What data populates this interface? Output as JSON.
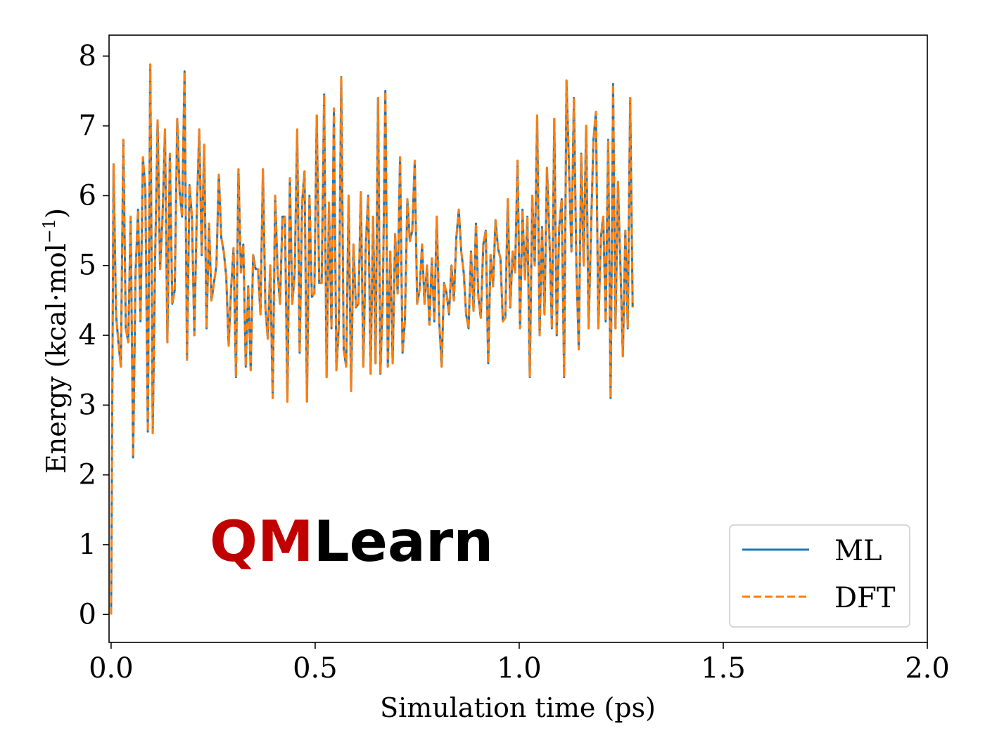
{
  "chart_data": {
    "type": "line",
    "title": "",
    "xlabel": "Simulation time (ps)",
    "ylabel_main": "Energy (kcal·mol",
    "ylabel_sup": "−1",
    "ylabel_close": ")",
    "xlim": [
      -0.005,
      2.0
    ],
    "ylim": [
      -0.4,
      8.3
    ],
    "xticks": [
      0.0,
      0.5,
      1.0,
      1.5,
      2.0
    ],
    "xtick_labels": [
      "0.0",
      "0.5",
      "1.0",
      "1.5",
      "2.0"
    ],
    "yticks": [
      0,
      1,
      2,
      3,
      4,
      5,
      6,
      7,
      8
    ],
    "ytick_labels": [
      "0",
      "1",
      "2",
      "3",
      "4",
      "5",
      "6",
      "7",
      "8"
    ],
    "grid": false,
    "legend": {
      "placement": "bottom-right",
      "entries": [
        "ML",
        "DFT"
      ]
    },
    "colors": {
      "ML": "#1f77b4",
      "DFT": "#ff7f0e"
    },
    "logo": {
      "part1": "QM",
      "part2": "Learn",
      "color1": "#c00000",
      "color2": "#000000"
    },
    "x_step": 0.006,
    "series": [
      {
        "name": "ML",
        "style": "solid",
        "values": [
          0.0,
          6.45,
          4.3,
          3.9,
          3.55,
          6.8,
          4.1,
          3.9,
          5.7,
          2.25,
          4.9,
          5.8,
          4.2,
          6.55,
          6.1,
          2.62,
          7.88,
          2.6,
          5.1,
          7.08,
          4.95,
          5.7,
          6.95,
          3.9,
          6.6,
          4.45,
          4.65,
          7.1,
          6.05,
          5.7,
          7.78,
          3.65,
          6.15,
          5.7,
          4.0,
          5.75,
          6.95,
          5.15,
          6.73,
          4.1,
          5.6,
          4.5,
          4.75,
          5.0,
          6.3,
          5.4,
          5.2,
          4.85,
          3.85,
          4.65,
          5.25,
          3.4,
          6.38,
          4.9,
          5.3,
          3.55,
          4.7,
          3.5,
          5.15,
          4.95,
          4.95,
          4.3,
          6.38,
          4.4,
          3.95,
          5.0,
          3.1,
          6.0,
          4.9,
          4.45,
          5.7,
          5.7,
          3.05,
          6.25,
          4.45,
          4.9,
          6.95,
          3.75,
          5.9,
          6.35,
          3.05,
          6.0,
          4.55,
          4.6,
          7.15,
          4.75,
          4.75,
          7.45,
          3.4,
          5.9,
          4.1,
          7.25,
          3.5,
          4.15,
          7.7,
          3.8,
          3.55,
          6.0,
          3.2,
          5.3,
          4.4,
          4.45,
          6.05,
          3.55,
          5.3,
          6.0,
          3.45,
          5.7,
          3.6,
          7.4,
          3.45,
          4.6,
          7.5,
          3.55,
          5.2,
          3.6,
          5.45,
          4.6,
          6.55,
          3.75,
          4.2,
          5.95,
          5.35,
          5.5,
          6.5,
          4.45,
          4.65,
          5.3,
          4.45,
          5.0,
          4.15,
          5.1,
          4.2,
          5.7,
          4.2,
          3.55,
          4.75,
          4.6,
          4.3,
          5.0,
          4.5,
          5.4,
          5.8,
          5.2,
          4.9,
          4.3,
          4.1,
          5.2,
          4.35,
          5.6,
          4.55,
          4.25,
          5.3,
          5.5,
          3.6,
          5.15,
          4.7,
          5.65,
          5.25,
          5.1,
          4.2,
          4.25,
          5.95,
          4.4,
          5.2,
          4.9,
          6.5,
          4.1,
          5.8,
          4.8,
          5.7,
          3.4,
          6.0,
          5.0,
          7.15,
          4.0,
          5.55,
          4.3,
          6.4,
          5.4,
          4.1,
          7.1,
          4.0,
          5.55,
          5.95,
          3.4,
          7.65,
          6.4,
          5.2,
          7.4,
          5.0,
          3.8,
          6.6,
          5.0,
          7.0,
          4.1,
          5.5,
          6.8,
          7.2,
          4.1,
          5.4,
          5.7,
          4.2,
          6.8,
          3.1,
          7.6,
          4.1,
          6.2,
          5.0,
          3.7,
          5.5,
          4.1,
          7.4,
          4.4
        ]
      },
      {
        "name": "DFT",
        "style": "dashed",
        "values": [
          0.0,
          6.45,
          4.3,
          3.9,
          3.55,
          6.8,
          4.1,
          3.9,
          5.7,
          2.25,
          4.9,
          5.8,
          4.2,
          6.55,
          6.1,
          2.62,
          7.88,
          2.6,
          5.1,
          7.08,
          4.95,
          5.7,
          6.95,
          3.9,
          6.6,
          4.45,
          4.65,
          7.1,
          6.05,
          5.7,
          7.78,
          3.65,
          6.15,
          5.7,
          4.0,
          5.75,
          6.95,
          5.15,
          6.73,
          4.1,
          5.6,
          4.5,
          4.75,
          5.0,
          6.3,
          5.4,
          5.2,
          4.85,
          3.85,
          4.65,
          5.25,
          3.4,
          6.38,
          4.9,
          5.3,
          3.55,
          4.7,
          3.5,
          5.15,
          4.95,
          4.95,
          4.3,
          6.38,
          4.4,
          3.95,
          5.0,
          3.1,
          6.0,
          4.9,
          4.45,
          5.7,
          5.7,
          3.05,
          6.25,
          4.45,
          4.9,
          6.95,
          3.75,
          5.9,
          6.35,
          3.05,
          6.0,
          4.55,
          4.6,
          7.15,
          4.75,
          4.75,
          7.45,
          3.4,
          5.9,
          4.1,
          7.25,
          3.5,
          4.15,
          7.7,
          3.8,
          3.55,
          6.0,
          3.2,
          5.3,
          4.4,
          4.45,
          6.05,
          3.55,
          5.3,
          6.0,
          3.45,
          5.7,
          3.6,
          7.4,
          3.45,
          4.6,
          7.5,
          3.55,
          5.2,
          3.6,
          5.45,
          4.6,
          6.55,
          3.75,
          4.2,
          5.95,
          5.35,
          5.5,
          6.5,
          4.45,
          4.65,
          5.3,
          4.45,
          5.0,
          4.15,
          5.1,
          4.2,
          5.7,
          4.2,
          3.55,
          4.75,
          4.6,
          4.3,
          5.0,
          4.5,
          5.4,
          5.8,
          5.2,
          4.9,
          4.3,
          4.1,
          5.2,
          4.35,
          5.6,
          4.55,
          4.25,
          5.3,
          5.5,
          3.6,
          5.15,
          4.7,
          5.65,
          5.25,
          5.1,
          4.2,
          4.25,
          5.95,
          4.4,
          5.2,
          4.9,
          6.5,
          4.1,
          5.8,
          4.8,
          5.7,
          3.4,
          6.0,
          5.0,
          7.15,
          4.0,
          5.55,
          4.3,
          6.4,
          5.4,
          4.1,
          7.1,
          4.0,
          5.55,
          5.95,
          3.4,
          7.65,
          6.4,
          5.2,
          7.4,
          5.0,
          3.8,
          6.6,
          5.0,
          7.0,
          4.1,
          5.5,
          6.8,
          7.2,
          4.1,
          5.4,
          5.7,
          4.2,
          6.8,
          3.1,
          7.6,
          4.1,
          6.2,
          5.0,
          3.7,
          5.5,
          4.1,
          7.4,
          4.4
        ]
      }
    ]
  }
}
